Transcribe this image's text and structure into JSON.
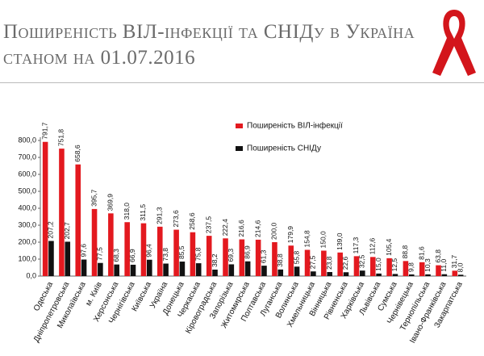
{
  "title": "Поширеність ВІЛ-інфекції та СНІДу в Україна станом на 01.07.2016",
  "chart_data": {
    "type": "bar",
    "categories": [
      "Одеська",
      "Дніпропетровська",
      "Миколаївська",
      "м. Київ",
      "Херсонська",
      "Чернігівська",
      "Київська",
      "Україна",
      "Донецька",
      "Черкаська",
      "Кіровоградська",
      "Запорізька",
      "Житомирська",
      "Полтавська",
      "Луганська",
      "Волинська",
      "Хмельницька",
      "Вінницька",
      "Рівненська",
      "Харківська",
      "Львівська",
      "Сумська",
      "Чернівецька",
      "Тернопільська",
      "Івано-Франківська",
      "Закарпатська"
    ],
    "series": [
      {
        "name": "Поширеність ВІЛ-інфекції",
        "color": "#e3191f",
        "values": [
          791.7,
          751.8,
          658.6,
          395.7,
          369.9,
          318.0,
          311.5,
          291.3,
          273.6,
          258.6,
          237.5,
          222.4,
          216.6,
          214.6,
          200.0,
          179.9,
          154.8,
          150.0,
          139.0,
          117.3,
          112.6,
          105.4,
          88.8,
          81.6,
          63.8,
          31.7
        ],
        "value_labels": [
          "791,7",
          "751,8",
          "658,6",
          "395,7",
          "369,9",
          "318,0",
          "311,5",
          "291,3",
          "273,6",
          "258,6",
          "237,5",
          "222,4",
          "216,6",
          "214,6",
          "200,0",
          "179,9",
          "154,8",
          "150,0",
          "139,0",
          "117,3",
          "112,6",
          "105,4",
          "88,8",
          "81,6",
          "63,8",
          "31,7"
        ]
      },
      {
        "name": "Поширеність СНІДу",
        "color": "#111111",
        "values": [
          207.2,
          202.7,
          97.6,
          77.5,
          68.3,
          66.9,
          96.4,
          73.8,
          85.5,
          75.8,
          38.2,
          69.3,
          86.9,
          61.3,
          38.8,
          55.8,
          27.5,
          23.8,
          22.6,
          32.5,
          15.0,
          12.5,
          9.8,
          10.3,
          11.0,
          8.0
        ],
        "value_labels": [
          "207,2",
          "202,7",
          "97,6",
          "77,5",
          "68,3",
          "66,9",
          "96,4",
          "73,8",
          "85,5",
          "75,8",
          "38,2",
          "69,3",
          "86,9",
          "61,3",
          "38,8",
          "55,8",
          "27,5",
          "23,8",
          "22,6",
          "32,5",
          "15,0",
          "12,5",
          "9,8",
          "10,3",
          "11,0",
          "8,0"
        ]
      }
    ],
    "ylim": [
      0,
      800
    ],
    "yticks": [
      {
        "value": 0,
        "label": "0,0"
      },
      {
        "value": 100,
        "label": "100,0"
      },
      {
        "value": 200,
        "label": "200,0"
      },
      {
        "value": 300,
        "label": "300,0"
      },
      {
        "value": 400,
        "label": "400,0"
      },
      {
        "value": 500,
        "label": "500,0"
      },
      {
        "value": 600,
        "label": "600,0"
      },
      {
        "value": 700,
        "label": "700,0"
      },
      {
        "value": 800,
        "label": "800,0"
      }
    ],
    "grid": false
  }
}
